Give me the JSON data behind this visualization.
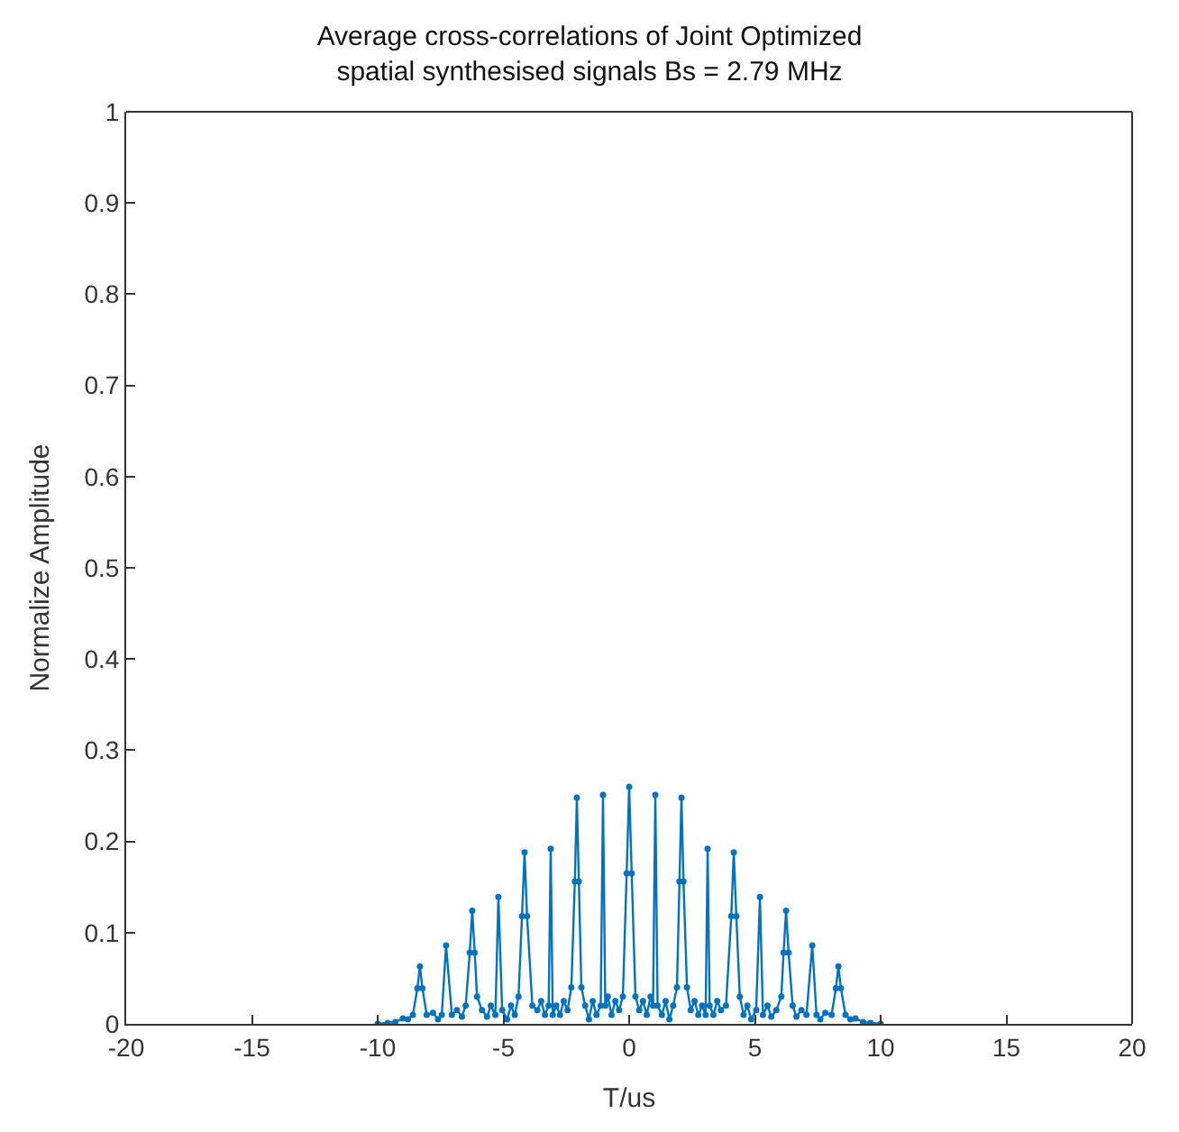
{
  "chart_data": {
    "type": "line",
    "title": "Average cross-correlations of Joint Optimized\nspatial synthesised signals Bs = 2.79 MHz",
    "xlabel": "T/us",
    "ylabel": "Normalize Amplitude",
    "xlim": [
      -20,
      20
    ],
    "xticks": [
      -20,
      -15,
      -10,
      -5,
      0,
      5,
      10,
      15,
      20
    ],
    "ylim": [
      0,
      1
    ],
    "yticks": [
      0,
      0.1,
      0.2,
      0.3,
      0.4,
      0.5,
      0.6,
      0.7,
      0.8,
      0.9,
      1
    ],
    "marker": "circle",
    "line_style": "solid",
    "series": [
      {
        "color": "#0072bd",
        "x": [
          -10,
          -9.6,
          -9.3,
          -9.0,
          -8.8,
          -8.6,
          -8.42,
          -8.32,
          -8.22,
          -8.05,
          -7.8,
          -7.6,
          -7.45,
          -7.28,
          -7.05,
          -6.85,
          -6.65,
          -6.5,
          -6.34,
          -6.24,
          -6.14,
          -6.05,
          -5.85,
          -5.65,
          -5.5,
          -5.32,
          -5.2,
          -5.05,
          -4.85,
          -4.7,
          -4.55,
          -4.4,
          -4.26,
          -4.16,
          -4.06,
          -3.85,
          -3.65,
          -3.5,
          -3.35,
          -3.2,
          -3.12,
          -3.04,
          -2.9,
          -2.75,
          -2.6,
          -2.45,
          -2.3,
          -2.16,
          -2.08,
          -2.0,
          -1.9,
          -1.75,
          -1.6,
          -1.45,
          -1.3,
          -1.13,
          -1.04,
          -0.95,
          -0.85,
          -0.7,
          -0.55,
          -0.4,
          -0.25,
          -0.1,
          0,
          0.1,
          0.25,
          0.4,
          0.55,
          0.7,
          0.85,
          0.95,
          1.04,
          1.13,
          1.3,
          1.45,
          1.6,
          1.75,
          1.9,
          2.0,
          2.08,
          2.16,
          2.3,
          2.45,
          2.6,
          2.75,
          2.9,
          3.04,
          3.12,
          3.2,
          3.35,
          3.5,
          3.65,
          3.85,
          4.06,
          4.16,
          4.26,
          4.4,
          4.55,
          4.7,
          4.85,
          5.05,
          5.2,
          5.32,
          5.5,
          5.65,
          5.85,
          6.05,
          6.14,
          6.24,
          6.34,
          6.5,
          6.65,
          6.85,
          7.05,
          7.28,
          7.45,
          7.6,
          7.8,
          8.05,
          8.22,
          8.32,
          8.42,
          8.6,
          8.8,
          9.0,
          9.3,
          9.6,
          10
        ],
        "values": [
          0,
          0.001,
          0.002,
          0.006,
          0.005,
          0.01,
          0.039,
          0.063,
          0.039,
          0.01,
          0.012,
          0.005,
          0.01,
          0.086,
          0.01,
          0.015,
          0.008,
          0.02,
          0.078,
          0.124,
          0.078,
          0.03,
          0.015,
          0.008,
          0.02,
          0.01,
          0.139,
          0.015,
          0.005,
          0.02,
          0.01,
          0.03,
          0.118,
          0.188,
          0.118,
          0.02,
          0.015,
          0.025,
          0.01,
          0.02,
          0.192,
          0.01,
          0.02,
          0.01,
          0.025,
          0.015,
          0.04,
          0.156,
          0.248,
          0.156,
          0.04,
          0.02,
          0.005,
          0.025,
          0.01,
          0.02,
          0.251,
          0.02,
          0.03,
          0.01,
          0.025,
          0.015,
          0.03,
          0.165,
          0.26,
          0.165,
          0.03,
          0.015,
          0.025,
          0.01,
          0.03,
          0.02,
          0.251,
          0.02,
          0.01,
          0.025,
          0.005,
          0.02,
          0.04,
          0.156,
          0.248,
          0.156,
          0.04,
          0.015,
          0.025,
          0.01,
          0.02,
          0.01,
          0.192,
          0.02,
          0.01,
          0.025,
          0.015,
          0.02,
          0.118,
          0.188,
          0.118,
          0.03,
          0.01,
          0.02,
          0.005,
          0.015,
          0.139,
          0.01,
          0.02,
          0.008,
          0.015,
          0.03,
          0.078,
          0.124,
          0.078,
          0.02,
          0.008,
          0.015,
          0.01,
          0.086,
          0.01,
          0.005,
          0.012,
          0.01,
          0.039,
          0.063,
          0.039,
          0.01,
          0.005,
          0.006,
          0.002,
          0.001,
          0
        ]
      }
    ]
  }
}
